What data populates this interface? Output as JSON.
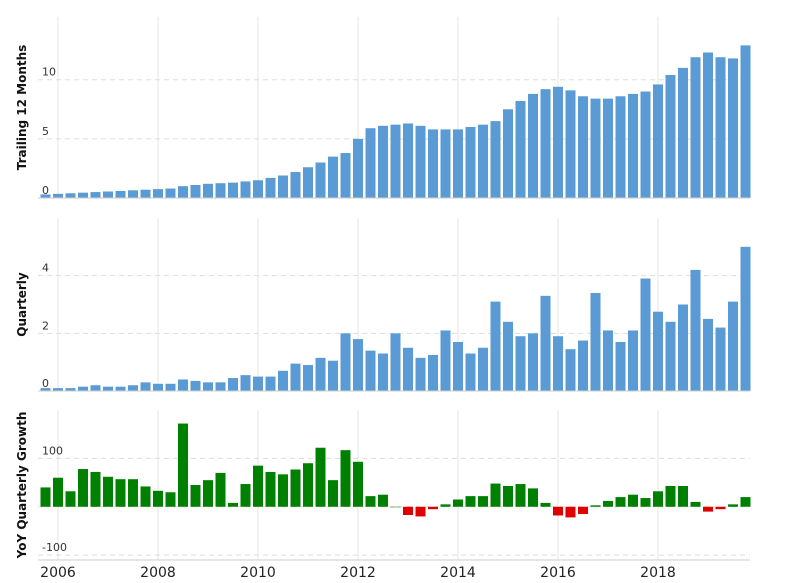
{
  "chart_data": [
    {
      "type": "bar",
      "ylabel": "Trailing 12 Months",
      "color": "#5b9bd5",
      "ylim": [
        0,
        15.3
      ],
      "yticks": [
        0,
        5,
        10
      ],
      "grid": true,
      "xlim": [
        2005.6,
        2019.84
      ],
      "x": [
        2005.75,
        2006,
        2006.25,
        2006.5,
        2006.75,
        2007,
        2007.25,
        2007.5,
        2007.75,
        2008,
        2008.25,
        2008.5,
        2008.75,
        2009,
        2009.25,
        2009.5,
        2009.75,
        2010,
        2010.25,
        2010.5,
        2010.75,
        2011,
        2011.25,
        2011.5,
        2011.75,
        2012,
        2012.25,
        2012.5,
        2012.75,
        2013,
        2013.25,
        2013.5,
        2013.75,
        2014,
        2014.25,
        2014.5,
        2014.75,
        2015,
        2015.25,
        2015.5,
        2015.75,
        2016,
        2016.25,
        2016.5,
        2016.75,
        2017,
        2017.25,
        2017.5,
        2017.75,
        2018,
        2018.25,
        2018.5,
        2018.75,
        2019,
        2019.25,
        2019.5,
        2019.75
      ],
      "values": [
        0.3,
        0.35,
        0.4,
        0.45,
        0.5,
        0.55,
        0.6,
        0.65,
        0.7,
        0.75,
        0.8,
        1.0,
        1.1,
        1.2,
        1.25,
        1.3,
        1.4,
        1.5,
        1.7,
        1.9,
        2.2,
        2.6,
        3.0,
        3.5,
        3.8,
        5.0,
        5.9,
        6.1,
        6.2,
        6.3,
        6.1,
        5.8,
        5.8,
        5.8,
        6.0,
        6.2,
        6.5,
        7.5,
        8.2,
        8.8,
        9.2,
        9.4,
        9.1,
        8.6,
        8.4,
        8.4,
        8.6,
        8.8,
        9.0,
        9.6,
        10.4,
        11.0,
        11.9,
        12.3,
        11.9,
        11.8,
        12.9
      ]
    },
    {
      "type": "bar",
      "ylabel": "Quarterly",
      "color": "#5b9bd5",
      "ylim": [
        0,
        6
      ],
      "yticks": [
        0,
        2,
        4
      ],
      "grid": true,
      "xlim": [
        2005.6,
        2019.84
      ],
      "x": [
        2005.75,
        2006,
        2006.25,
        2006.5,
        2006.75,
        2007,
        2007.25,
        2007.5,
        2007.75,
        2008,
        2008.25,
        2008.5,
        2008.75,
        2009,
        2009.25,
        2009.5,
        2009.75,
        2010,
        2010.25,
        2010.5,
        2010.75,
        2011,
        2011.25,
        2011.5,
        2011.75,
        2012,
        2012.25,
        2012.5,
        2012.75,
        2013,
        2013.25,
        2013.5,
        2013.75,
        2014,
        2014.25,
        2014.5,
        2014.75,
        2015,
        2015.25,
        2015.5,
        2015.75,
        2016,
        2016.25,
        2016.5,
        2016.75,
        2017,
        2017.25,
        2017.5,
        2017.75,
        2018,
        2018.25,
        2018.5,
        2018.75,
        2019,
        2019.25,
        2019.5,
        2019.75
      ],
      "values": [
        0.1,
        0.1,
        0.1,
        0.15,
        0.2,
        0.15,
        0.15,
        0.2,
        0.3,
        0.25,
        0.25,
        0.4,
        0.35,
        0.3,
        0.3,
        0.45,
        0.55,
        0.5,
        0.5,
        0.7,
        0.95,
        0.9,
        1.15,
        1.05,
        2.0,
        1.8,
        1.4,
        1.3,
        2.0,
        1.5,
        1.15,
        1.25,
        2.1,
        1.7,
        1.3,
        1.5,
        3.1,
        2.4,
        1.9,
        2.0,
        3.3,
        1.9,
        1.45,
        1.75,
        3.4,
        2.1,
        1.7,
        2.1,
        3.9,
        2.75,
        2.4,
        3.0,
        4.2,
        2.5,
        2.2,
        3.1,
        5.0
      ]
    },
    {
      "type": "diverging_bar",
      "ylabel": "YoY Quarterly Growth",
      "positive_color": "#008000",
      "negative_color": "#e00000",
      "ylim": [
        -110,
        200
      ],
      "yticks": [
        -100,
        0,
        100
      ],
      "grid": true,
      "xlim": [
        2005.6,
        2019.84
      ],
      "xticks": [
        2006,
        2008,
        2010,
        2012,
        2014,
        2016,
        2018
      ],
      "x": [
        2005.75,
        2006,
        2006.25,
        2006.5,
        2006.75,
        2007,
        2007.25,
        2007.5,
        2007.75,
        2008,
        2008.25,
        2008.5,
        2008.75,
        2009,
        2009.25,
        2009.5,
        2009.75,
        2010,
        2010.25,
        2010.5,
        2010.75,
        2011,
        2011.25,
        2011.5,
        2011.75,
        2012,
        2012.25,
        2012.5,
        2012.75,
        2013,
        2013.25,
        2013.5,
        2013.75,
        2014,
        2014.25,
        2014.5,
        2014.75,
        2015,
        2015.25,
        2015.5,
        2015.75,
        2016,
        2016.25,
        2016.5,
        2016.75,
        2017,
        2017.25,
        2017.5,
        2017.75,
        2018,
        2018.25,
        2018.5,
        2018.75,
        2019,
        2019.25,
        2019.5,
        2019.75
      ],
      "values": [
        40,
        60,
        32,
        78,
        72,
        62,
        57,
        57,
        42,
        33,
        30,
        172,
        45,
        55,
        70,
        8,
        47,
        85,
        72,
        67,
        77,
        90,
        122,
        55,
        117,
        93,
        22,
        25,
        0,
        -17,
        -20,
        -5,
        5,
        15,
        22,
        22,
        48,
        43,
        47,
        38,
        8,
        -18,
        -22,
        -15,
        3,
        12,
        20,
        25,
        18,
        32,
        43,
        43,
        10,
        -10,
        -5,
        5,
        20
      ]
    }
  ]
}
